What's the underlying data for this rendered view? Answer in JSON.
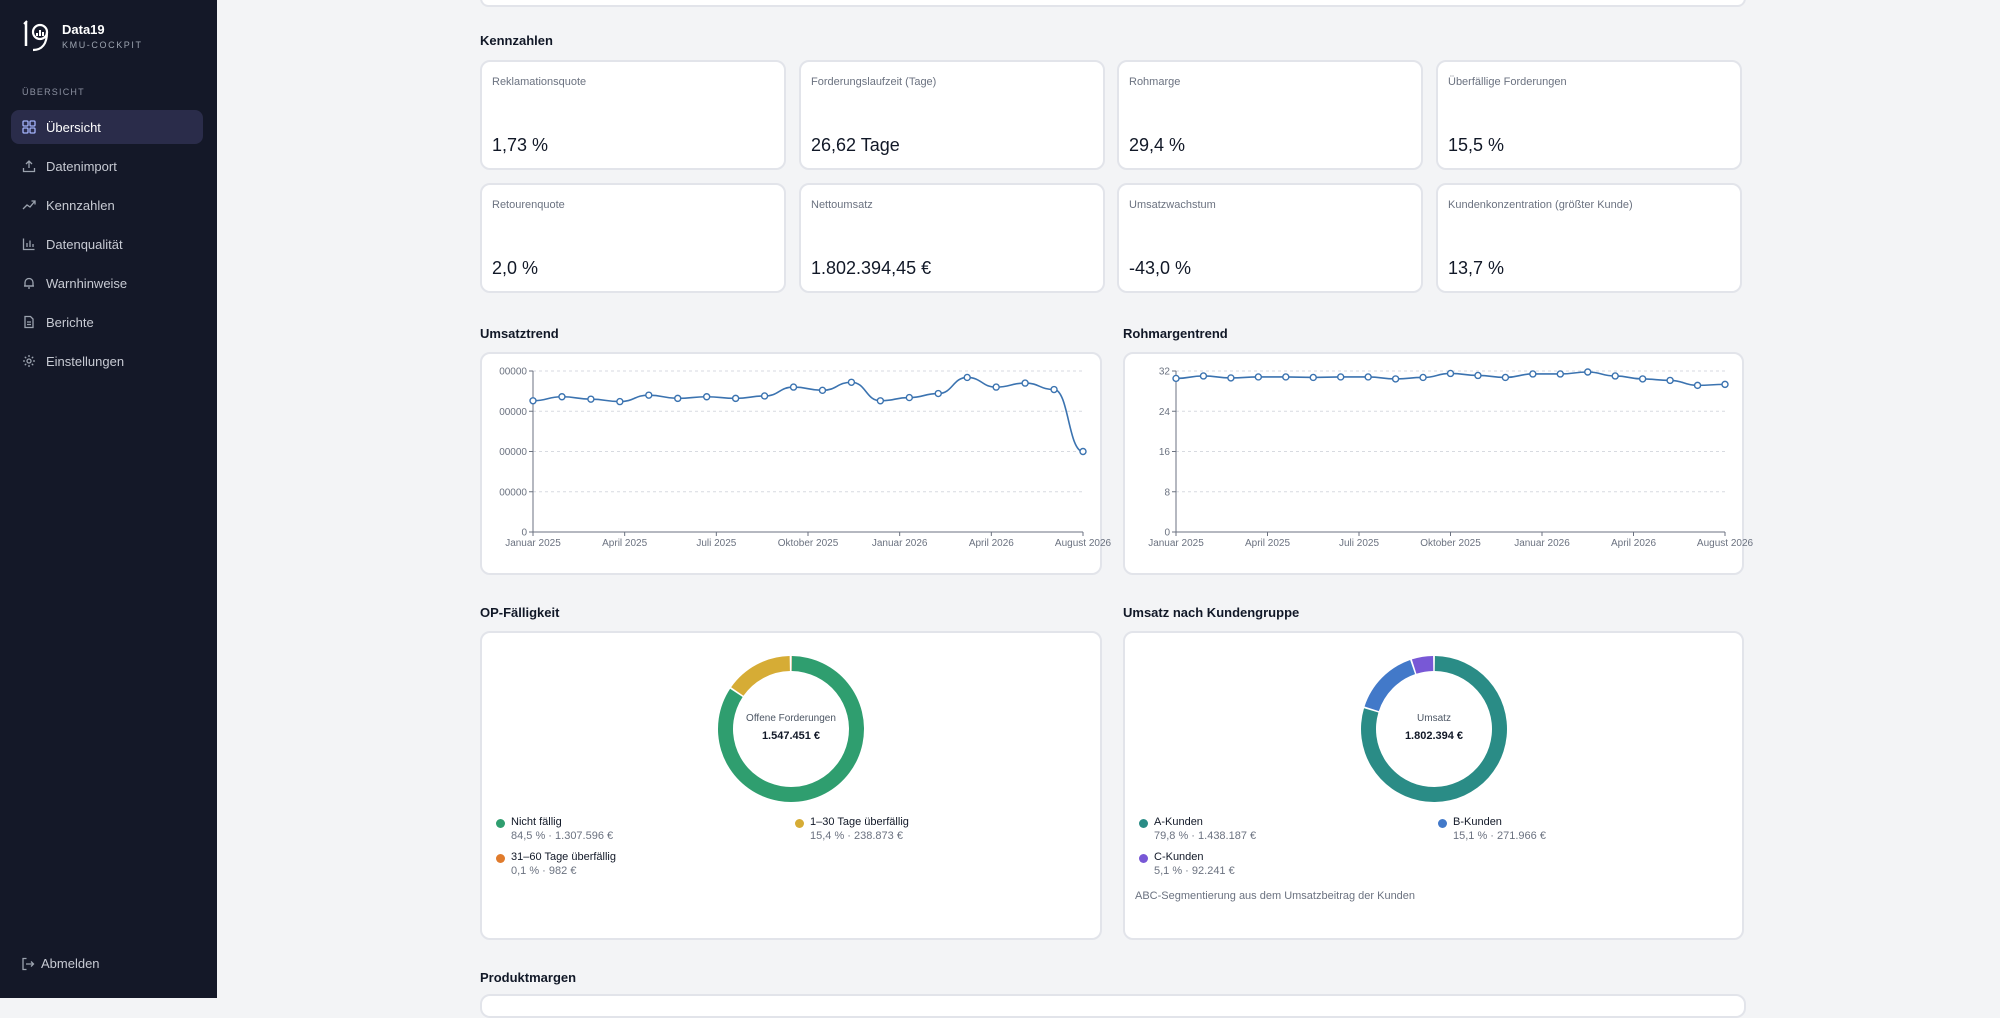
{
  "brand": {
    "name": "Data19",
    "subtitle": "KMU-COCKPIT"
  },
  "nav": {
    "section": "ÜBERSICHT",
    "items": [
      {
        "label": "Übersicht",
        "icon": "grid-icon",
        "active": true
      },
      {
        "label": "Datenimport",
        "icon": "upload-icon"
      },
      {
        "label": "Kennzahlen",
        "icon": "trend-icon"
      },
      {
        "label": "Datenqualität",
        "icon": "bar-chart-icon"
      },
      {
        "label": "Warnhinweise",
        "icon": "bell-icon"
      },
      {
        "label": "Berichte",
        "icon": "document-icon"
      },
      {
        "label": "Einstellungen",
        "icon": "gear-icon"
      }
    ],
    "logout": "Abmelden"
  },
  "sections": {
    "kpis": "Kennzahlen",
    "umsatztrend": "Umsatztrend",
    "rohmargentrend": "Rohmargentrend",
    "op": "OP-Fälligkeit",
    "kundengruppe": "Umsatz nach Kundengruppe",
    "produktmargen": "Produktmargen"
  },
  "kpis": [
    {
      "label": "Reklamationsquote",
      "value": "1,73 %"
    },
    {
      "label": "Forderungslaufzeit (Tage)",
      "value": "26,62 Tage"
    },
    {
      "label": "Rohmarge",
      "value": "29,4 %"
    },
    {
      "label": "Überfällige Forderungen",
      "value": "15,5 %"
    },
    {
      "label": "Retourenquote",
      "value": "2,0 %"
    },
    {
      "label": "Nettoumsatz",
      "value": "1.802.394,45 €"
    },
    {
      "label": "Umsatzwachstum",
      "value": "-43,0 %"
    },
    {
      "label": "Kundenkonzentration (größter Kunde)",
      "value": "13,7 %"
    }
  ],
  "chart_data": [
    {
      "type": "line",
      "x_ticks": [
        "Januar 2025",
        "April 2025",
        "Juli 2025",
        "Oktober 2025",
        "Januar 2026",
        "April 2026",
        "August 2026"
      ],
      "y_ticks": [
        "0",
        "00000",
        "00000",
        "00000",
        "00000"
      ],
      "ylim": [
        0,
        200000
      ],
      "series_color": "#3b73b0",
      "values": [
        163000,
        168000,
        165000,
        162000,
        170000,
        166000,
        168000,
        166000,
        169000,
        180000,
        176000,
        186000,
        163000,
        167000,
        172000,
        192000,
        180000,
        185000,
        177000,
        100000
      ],
      "grid": true
    },
    {
      "type": "line",
      "x_ticks": [
        "Januar 2025",
        "April 2025",
        "Juli 2025",
        "Oktober 2025",
        "Januar 2026",
        "April 2026",
        "August 2026"
      ],
      "y_ticks": [
        "0",
        "8",
        "16",
        "24",
        "32"
      ],
      "ylim": [
        0,
        32.5
      ],
      "series_color": "#3b73b0",
      "values": [
        31.0,
        31.5,
        31.1,
        31.3,
        31.3,
        31.2,
        31.3,
        31.3,
        30.9,
        31.2,
        32.0,
        31.6,
        31.2,
        31.9,
        31.9,
        32.3,
        31.5,
        30.9,
        30.6,
        29.6,
        29.8
      ],
      "grid": true
    },
    {
      "type": "pie",
      "center_label": "Offene Forderungen",
      "center_value": "1.547.451 €",
      "slices": [
        {
          "name": "Nicht fällig",
          "value": 84.5,
          "detail": "84,5 % · 1.307.596 €",
          "color": "#2f9e6f"
        },
        {
          "name": "1–30 Tage überfällig",
          "value": 15.4,
          "detail": "15,4 % · 238.873 €",
          "color": "#d6ac35"
        },
        {
          "name": "31–60 Tage überfällig",
          "value": 0.1,
          "detail": "0,1 % · 982 €",
          "color": "#e07b2c"
        }
      ]
    },
    {
      "type": "pie",
      "center_label": "Umsatz",
      "center_value": "1.802.394 €",
      "slices": [
        {
          "name": "A-Kunden",
          "value": 79.8,
          "detail": "79,8 % · 1.438.187 €",
          "color": "#2a8c86"
        },
        {
          "name": "B-Kunden",
          "value": 15.1,
          "detail": "15,1 % · 271.966 €",
          "color": "#4279c9"
        },
        {
          "name": "C-Kunden",
          "value": 5.1,
          "detail": "5,1 % · 92.241 €",
          "color": "#7858d6"
        }
      ],
      "note": "ABC-Segmentierung aus dem Umsatzbeitrag der Kunden"
    }
  ]
}
